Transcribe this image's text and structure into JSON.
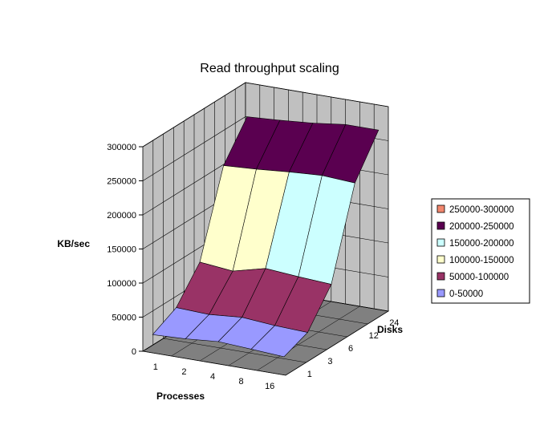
{
  "chart_data": {
    "type": "surface",
    "title": "Read throughput scaling",
    "zlabel": "KB/sec",
    "xlabel": "Processes",
    "ylabel": "Disks",
    "x": [
      "1",
      "2",
      "4",
      "8",
      "16"
    ],
    "y": [
      "1",
      "3",
      "6",
      "12",
      "24"
    ],
    "zlim": [
      0,
      300000
    ],
    "z_ticks": [
      "0",
      "50000",
      "100000",
      "150000",
      "200000",
      "250000",
      "300000"
    ],
    "values": [
      [
        22000,
        24000,
        28000,
        25000,
        22000
      ],
      [
        40000,
        38000,
        42000,
        38000,
        36000
      ],
      [
        85000,
        80000,
        92000,
        88000,
        85000
      ],
      [
        205000,
        208000,
        212000,
        215000,
        212000
      ],
      [
        255000,
        258000,
        262000,
        268000,
        268000
      ]
    ],
    "legend": {
      "position": "right",
      "entries": [
        {
          "label": "250000-300000",
          "color": "#f2876e"
        },
        {
          "label": "200000-250000",
          "color": "#5a0050"
        },
        {
          "label": "150000-200000",
          "color": "#ccffff"
        },
        {
          "label": "100000-150000",
          "color": "#ffffcc"
        },
        {
          "label": "50000-100000",
          "color": "#993366"
        },
        {
          "label": "0-50000",
          "color": "#9999ff"
        }
      ]
    },
    "grid": true
  }
}
